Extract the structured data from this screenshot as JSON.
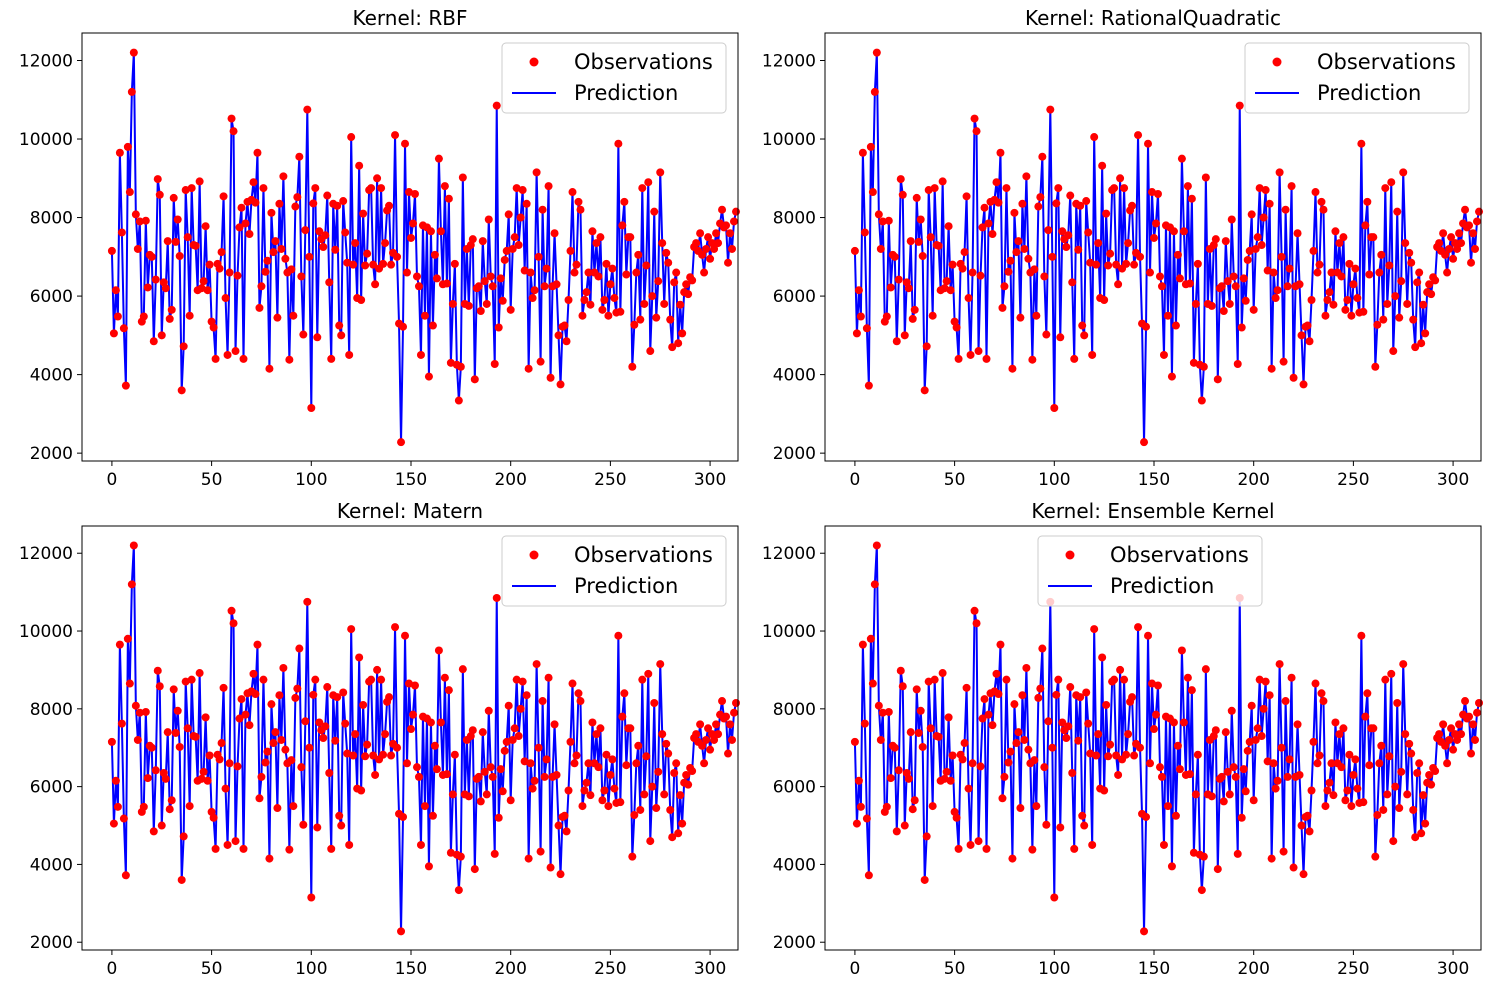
{
  "figure": {
    "width": 1489,
    "height": 989
  },
  "colors": {
    "observations": "#ff0000",
    "prediction": "#0000ff",
    "axes": "#000000",
    "legend_border": "#cccccc"
  },
  "legend_labels": {
    "observations": "Observations",
    "prediction": "Prediction"
  },
  "chart_data": [
    {
      "type": "line",
      "title": "Kernel: RBF",
      "xlim": [
        -15,
        314
      ],
      "ylim": [
        1800,
        12700
      ],
      "xticks": [
        0,
        50,
        100,
        150,
        200,
        250,
        300
      ],
      "yticks": [
        2000,
        4000,
        6000,
        8000,
        10000,
        12000
      ],
      "legend": "top-right",
      "series": [
        {
          "name": "Observations",
          "kind": "scatter",
          "ref": "obs"
        },
        {
          "name": "Prediction",
          "kind": "line",
          "ref": "obs"
        }
      ]
    },
    {
      "type": "line",
      "title": "Kernel: RationalQuadratic",
      "xlim": [
        -15,
        314
      ],
      "ylim": [
        1800,
        12700
      ],
      "xticks": [
        0,
        50,
        100,
        150,
        200,
        250,
        300
      ],
      "yticks": [
        2000,
        4000,
        6000,
        8000,
        10000,
        12000
      ],
      "legend": "top-right",
      "series": [
        {
          "name": "Observations",
          "kind": "scatter",
          "ref": "obs"
        },
        {
          "name": "Prediction",
          "kind": "line",
          "ref": "obs"
        }
      ]
    },
    {
      "type": "line",
      "title": "Kernel: Matern",
      "xlim": [
        -15,
        314
      ],
      "ylim": [
        1800,
        12700
      ],
      "xticks": [
        0,
        50,
        100,
        150,
        200,
        250,
        300
      ],
      "yticks": [
        2000,
        4000,
        6000,
        8000,
        10000,
        12000
      ],
      "legend": "top-right",
      "series": [
        {
          "name": "Observations",
          "kind": "scatter",
          "ref": "obs"
        },
        {
          "name": "Prediction",
          "kind": "line",
          "ref": "obs"
        }
      ]
    },
    {
      "type": "line",
      "title": "Kernel: Ensemble Kernel",
      "xlim": [
        -15,
        314
      ],
      "ylim": [
        1800,
        12700
      ],
      "xticks": [
        0,
        50,
        100,
        150,
        200,
        250,
        300
      ],
      "yticks": [
        2000,
        4000,
        6000,
        8000,
        10000,
        12000
      ],
      "legend": "top-center",
      "series": [
        {
          "name": "Observations",
          "kind": "scatter",
          "ref": "obs"
        },
        {
          "name": "Prediction",
          "kind": "line",
          "ref": "obs"
        }
      ]
    }
  ],
  "observations": {
    "x_start": 0,
    "x_step": 1,
    "y": [
      7150,
      5050,
      6150,
      5480,
      9650,
      7620,
      5180,
      3720,
      9800,
      8650,
      11200,
      12200,
      8080,
      7200,
      7900,
      5350,
      5480,
      7920,
      6220,
      7050,
      7000,
      4850,
      6420,
      8980,
      8580,
      5000,
      6350,
      6200,
      7400,
      5420,
      5650,
      8500,
      7380,
      7950,
      7020,
      3600,
      4720,
      8700,
      7500,
      5500,
      8750,
      7300,
      7280,
      6150,
      8920,
      6200,
      6380,
      7780,
      6150,
      6800,
      5350,
      5200,
      4400,
      6820,
      6700,
      7120,
      8540,
      5950,
      4500,
      6600,
      10520,
      10200,
      4600,
      6520,
      7750,
      8250,
      4400,
      7850,
      8400,
      7580,
      8450,
      8900,
      8380,
      9650,
      5700,
      6250,
      8750,
      6620,
      6900,
      4150,
      8120,
      7120,
      7400,
      5450,
      8350,
      7200,
      9050,
      6950,
      6600,
      4380,
      6680,
      5500,
      8280,
      8520,
      9550,
      6500,
      5020,
      7680,
      10750,
      7000,
      3150,
      8360,
      8750,
      4950,
      7650,
      7450,
      7250,
      7550,
      8560,
      6350,
      4400,
      8350,
      7180,
      8300,
      5250,
      5000,
      8420,
      7620,
      6850,
      4500,
      10050,
      6800,
      7350,
      5950,
      9320,
      5900,
      8100,
      6780,
      7080,
      8700,
      8750,
      6800,
      6300,
      9000,
      6700,
      8750,
      6820,
      7350,
      8180,
      8300,
      6800,
      7100,
      10100,
      7000,
      5300,
      2280,
      5220,
      9880,
      6600,
      8650,
      7480,
      7850,
      8600,
      6500,
      6250,
      4500,
      7800,
      5500,
      7750,
      3950,
      7650,
      5250,
      7050,
      6450,
      9500,
      7650,
      6300,
      8800,
      6320,
      8480,
      4300,
      5800,
      6820,
      4250,
      3340,
      4200,
      9020,
      5800,
      7200,
      5750,
      7300,
      7450,
      3880,
      6200,
      6250,
      5620,
      7400,
      6380,
      5800,
      7950,
      6500,
      6250,
      4270,
      10850,
      5200,
      6450,
      5880,
      6920,
      7150,
      8080,
      5650,
      7200,
      7500,
      8750,
      7300,
      8000,
      8700,
      6650,
      8350,
      4150,
      6600,
      5950,
      6150,
      9150,
      7000,
      4330,
      8200,
      6250,
      6700,
      8800,
      3920,
      6250,
      7600,
      6300,
      5000,
      3750,
      5220,
      5250,
      4850,
      5900,
      7150,
      8650,
      6600,
      6800,
      8400,
      8200,
      5500,
      5900,
      6100,
      6600,
      5780,
      7650,
      6600,
      7350,
      6500,
      7500,
      5650,
      5900,
      6820,
      5500,
      6300,
      6700,
      5950,
      5580,
      9880,
      5600,
      7800,
      8400,
      6550,
      7500,
      7500,
      4200,
      5270,
      6600,
      7050,
      5400,
      8750,
      5800,
      6780,
      8900,
      4600,
      6000,
      8150,
      5450,
      6380,
      9150,
      7350,
      5800,
      7100,
      6850,
      5400,
      4700,
      6350,
      6600,
      4800,
      5780,
      5050,
      6100,
      6300,
      6050,
      6480,
      6400,
      7250,
      7350,
      7150,
      7600,
      7050,
      6600,
      7200,
      7500,
      6950,
      7350,
      7200,
      7600,
      7350,
      7850,
      8200,
      7750,
      7800,
      6850,
      7600,
      7200,
      7900,
      8150
    ]
  }
}
